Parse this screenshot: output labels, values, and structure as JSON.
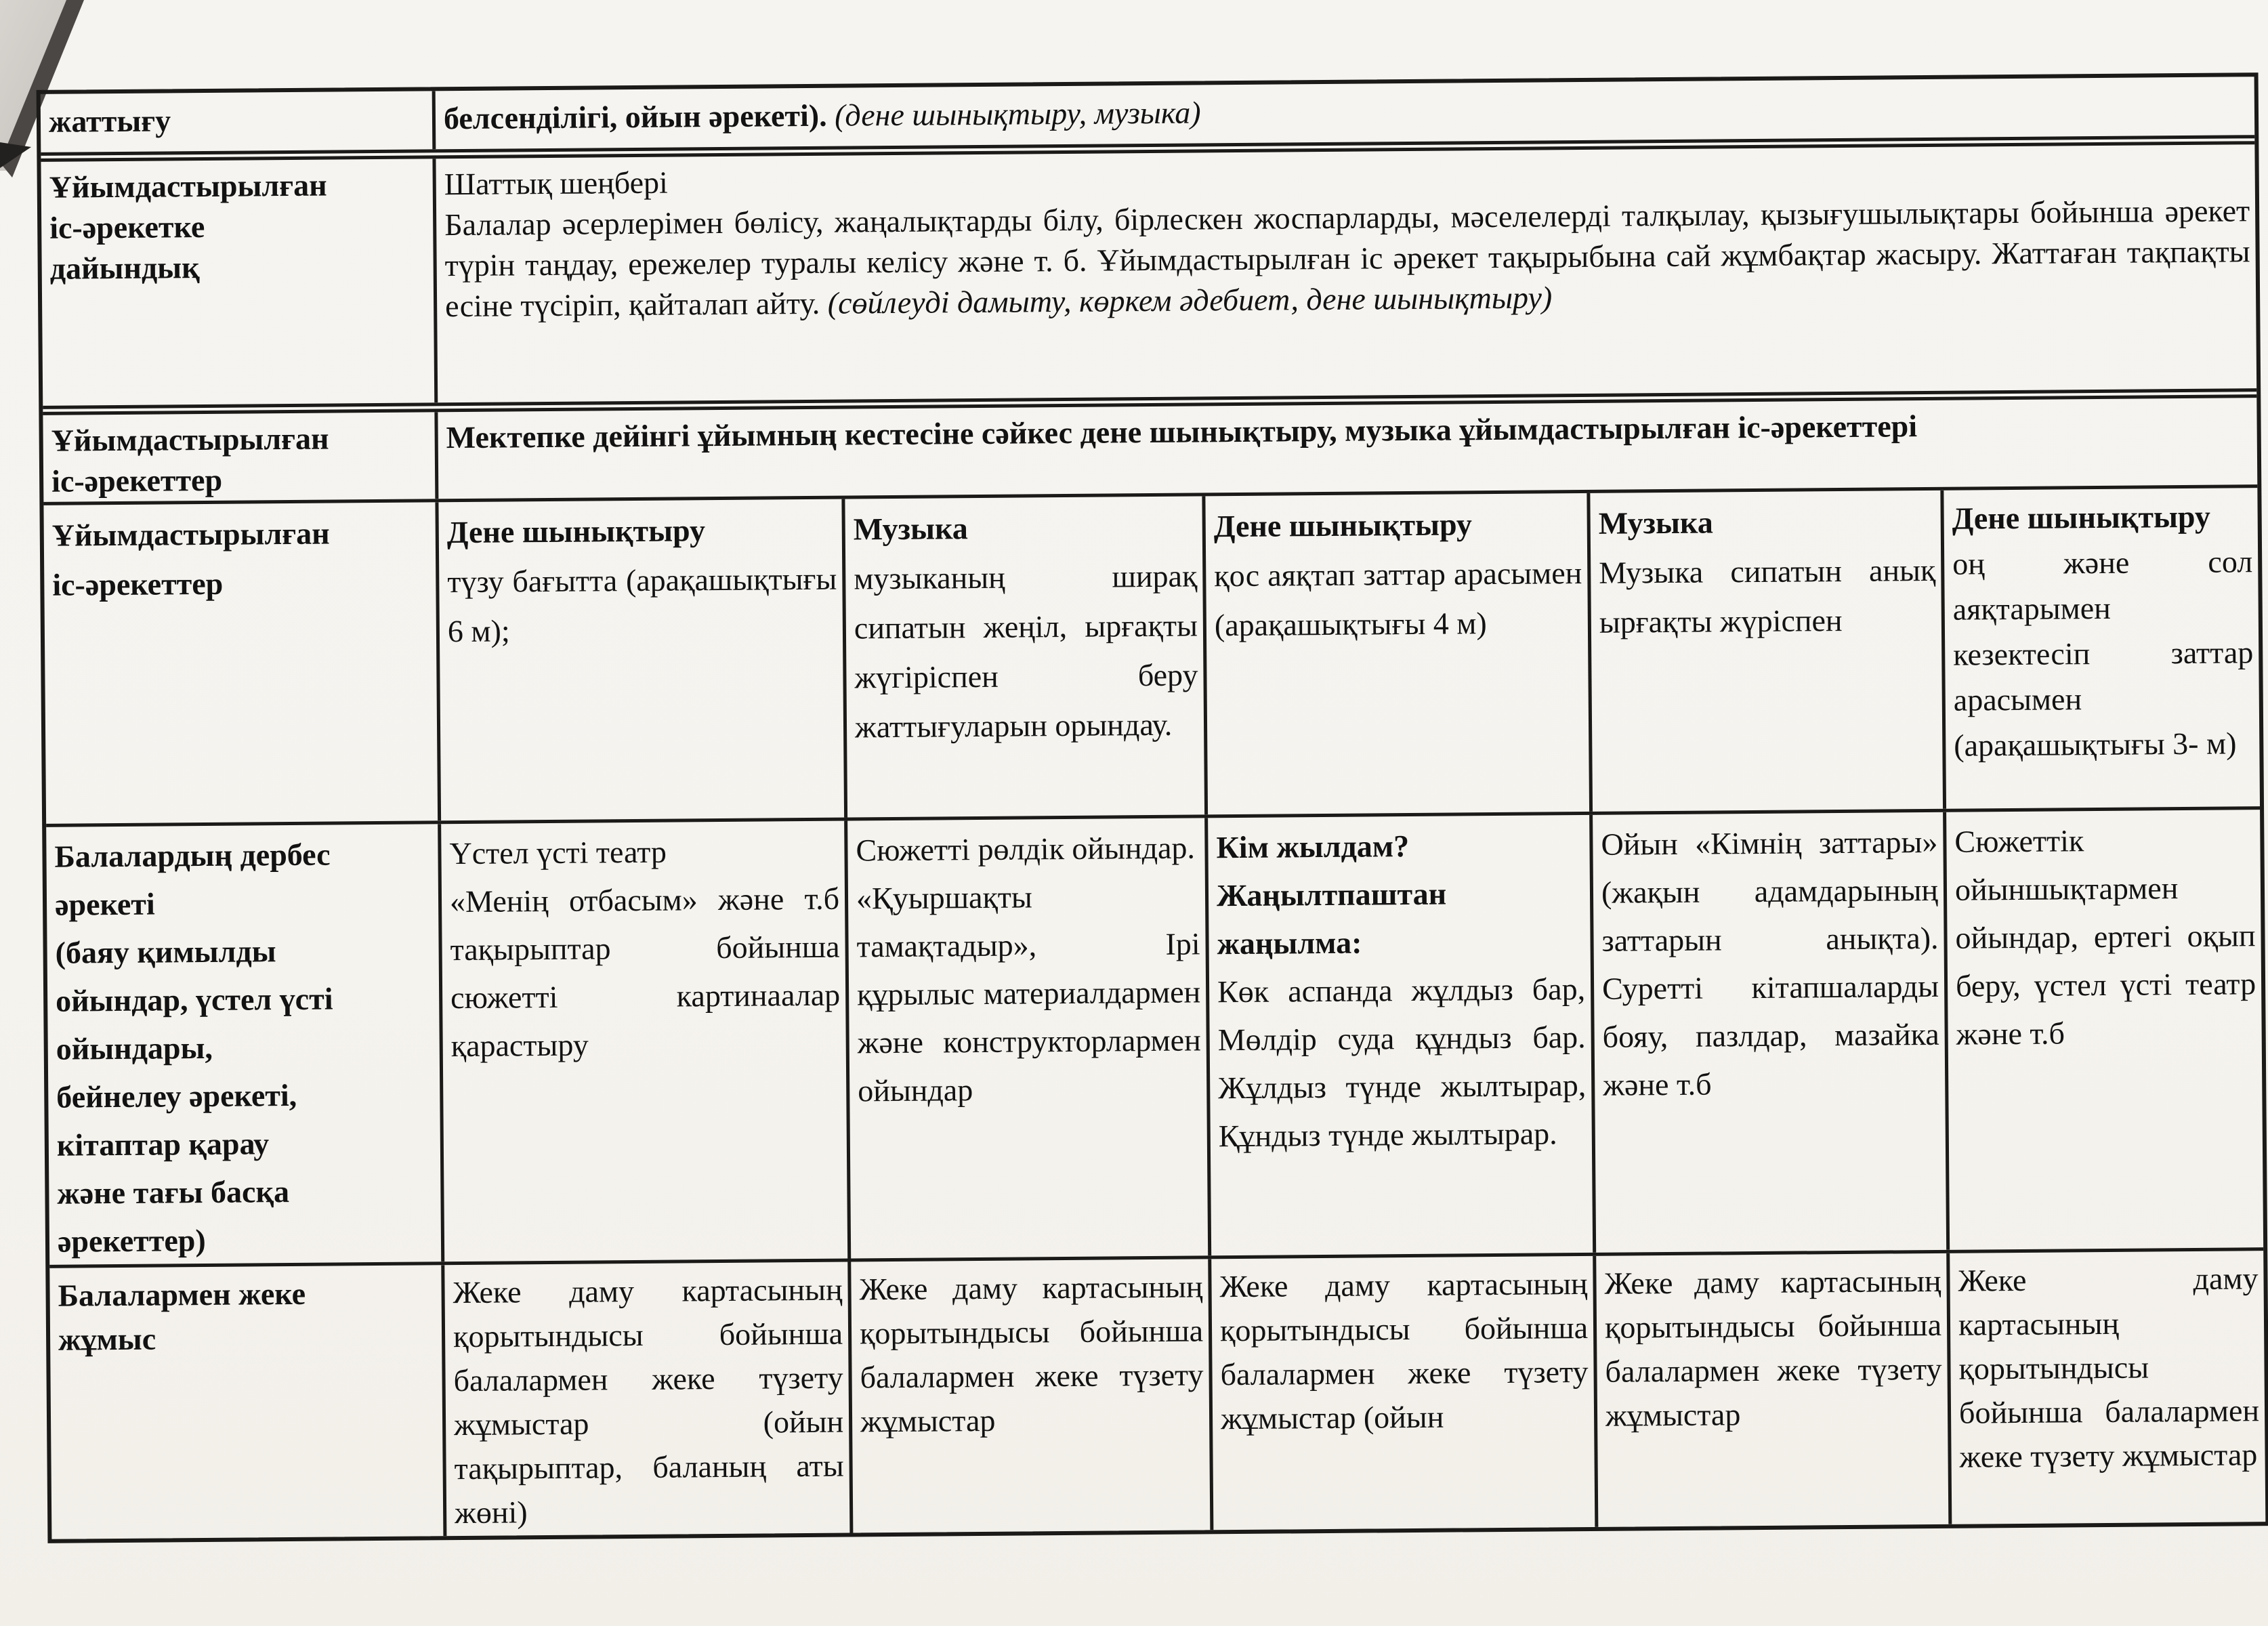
{
  "document": {
    "language": "kazakh",
    "kind": "preschool daily plan table (scanned)"
  },
  "colors": {
    "paper": "#f5f3ee",
    "ink": "#121212",
    "border": "#1b1a18"
  },
  "table": {
    "r1": {
      "header": "жаттығу",
      "body_bold": "белсенділігі, ойын әрекеті).",
      "body_italic": "(дене шынықтыру, музыка)"
    },
    "r2": {
      "header": "Ұйымдастырылған\nіс-әрекетке\nдайындық",
      "line1": "Шаттық шеңбері",
      "body": "Балалар әсерлерімен бөлісу, жаңалықтарды білу, бірлескен жоспарларды, мәселелерді талқылау, қызығушылықтары бойынша әрекет түрін таңдау, ережелер туралы келісу және т. б. Ұйымдастырылған іс әрекет тақырыбына сай жұмбақтар жасыру. Жаттаған тақпақты есіне түсіріп, қайталап айту. ",
      "body_italic": "(сөйлеуді дамыту, көркем әдебиет, дене шынықтыру)"
    },
    "r3": {
      "header": "Ұйымдастырылған\nіс-әрекеттер",
      "body": "Мектепке дейінгі ұйымның кестесіне сәйкес дене шынықтыру, музыка ұйымдастырылған іс-әрекеттері"
    },
    "r4": {
      "header": "Ұйымдастырылған\nіс-әрекеттер",
      "cells": [
        {
          "title": "Дене шынықтыру",
          "body": "түзу бағытта (арақашықтығы 6 м);"
        },
        {
          "title": "Музыка",
          "body": "музыканың ширақ сипатын жеңіл, ырғақты жүгіріспен беру жаттығуларын орындау."
        },
        {
          "title": "Дене шынықтыру",
          "body": "қос аяқтап заттар арасымен (арақашықтығы 4 м)"
        },
        {
          "title": "Музыка",
          "body": "Музыка сипатын анық ырғақты жүріспен"
        },
        {
          "title": "Дене шынықтыру",
          "body": "оң және сол аяқтарымен кезектесіп заттар арасымен (арақашықтығы 3- м)"
        }
      ]
    },
    "r5": {
      "header": "Балалардың дербес\nәрекеті\n(баяу қимылды\nойындар, үстел үсті\nойындары,\nбейнелеу әрекеті,\nкітаптар қарау\nжәне тағы басқа\nәрекеттер)",
      "cells": [
        {
          "title": "",
          "body": "Үстел үсті театр\n«Менің отбасым» және т.б тақырыптар бойынша сюжетті картинаалар қарастыру"
        },
        {
          "title": "",
          "body": "Сюжетті рөлдік ойындар.\n«Қуыршақты тамақтадыр», Ірі құрылыс материалдармен және конструкторлармен ойындар"
        },
        {
          "title": "Кім жылдам?\nЖаңылтпаштан\nжаңылма:",
          "body": "Көк аспанда жұлдыз бар, Мөлдір суда құндыз бар. Жұлдыз түнде жылтырар, Құндыз түнде жылтырар."
        },
        {
          "title": "",
          "body": "Ойын «Кімнің заттары» (жақын адамдарының заттарын анықта). Суретті кітапшаларды бояу, пазлдар, мазайка және т.б"
        },
        {
          "title": "",
          "body": "Сюжеттік ойыншықтармен ойындар, ертегі оқып беру, үстел үсті театр және т.б"
        }
      ]
    },
    "r6": {
      "header": "Балалармен жеке\nжұмыс",
      "cells": [
        {
          "body": "Жеке даму картасының қорытындысы бойынша балалармен жеке түзету жұмыстар (ойын тақырыптар, баланың аты жөні)"
        },
        {
          "body": "Жеке даму картасының қорытындысы бойынша балалармен жеке түзету жұмыстар"
        },
        {
          "body": "Жеке даму картасының қорытындысы бойынша балалармен жеке түзету жұмыстар (ойын"
        },
        {
          "body": "Жеке даму картасының қорытындысы бойынша балалармен жеке түзету жұмыстар"
        },
        {
          "body": "Жеке даму картасының қорытындысы бойынша балалармен жеке түзету жұмыстар"
        }
      ]
    }
  }
}
